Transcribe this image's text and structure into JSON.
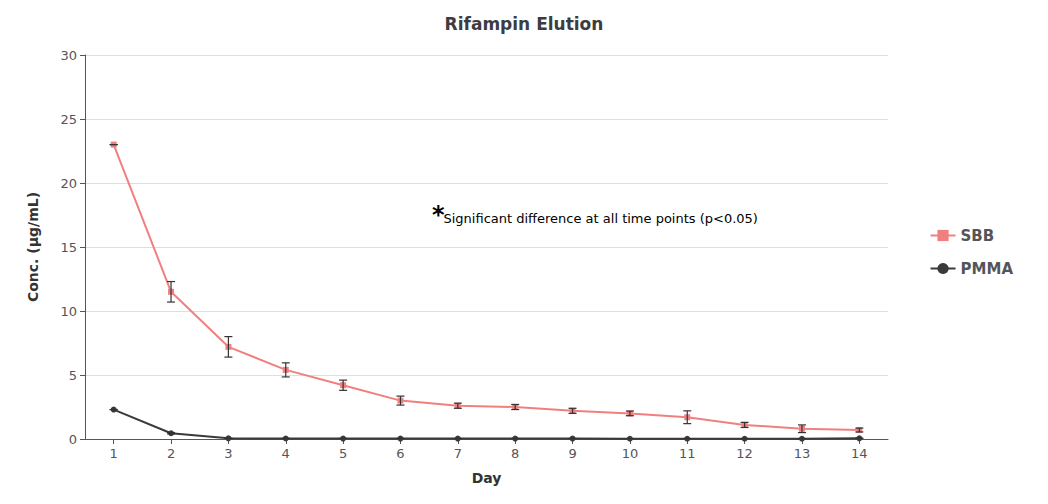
{
  "chart_data": {
    "type": "line",
    "title": "Rifampin Elution",
    "xlabel": "Day",
    "ylabel": "Conc. (μg/mL)",
    "x": [
      1,
      2,
      3,
      4,
      5,
      6,
      7,
      8,
      9,
      10,
      11,
      12,
      13,
      14
    ],
    "series": [
      {
        "name": "SBB",
        "color": "#f08080",
        "marker": "square",
        "values": [
          23.0,
          11.5,
          7.2,
          5.4,
          4.2,
          3.0,
          2.6,
          2.5,
          2.2,
          2.0,
          1.7,
          1.1,
          0.8,
          0.7
        ],
        "errors": [
          0.0,
          0.8,
          0.8,
          0.55,
          0.4,
          0.35,
          0.2,
          0.2,
          0.2,
          0.18,
          0.5,
          0.2,
          0.3,
          0.15
        ]
      },
      {
        "name": "PMMA",
        "color": "#3a3a3a",
        "marker": "circle",
        "values": [
          2.3,
          0.45,
          0.05,
          0.04,
          0.03,
          0.03,
          0.03,
          0.03,
          0.03,
          0.02,
          0.02,
          0.02,
          0.02,
          0.05
        ],
        "errors": [
          0.0,
          0.05,
          0.02,
          0.01,
          0.01,
          0.01,
          0.01,
          0.01,
          0.01,
          0.01,
          0.01,
          0.01,
          0.01,
          0.02
        ]
      }
    ],
    "xlim": [
      0.5,
      14.5
    ],
    "xticks": [
      1,
      2,
      3,
      4,
      5,
      6,
      7,
      8,
      9,
      10,
      11,
      12,
      13,
      14
    ],
    "ylim": [
      0,
      30
    ],
    "yticks": [
      0,
      5,
      10,
      15,
      20,
      25,
      30
    ],
    "grid": true,
    "legend": "right",
    "annotations": [
      {
        "text": "*",
        "x": 6.55,
        "y": 17.5
      },
      {
        "text": "Significant difference at all time points (p<0.05)",
        "x": 6.75,
        "y": 17.2
      }
    ]
  }
}
